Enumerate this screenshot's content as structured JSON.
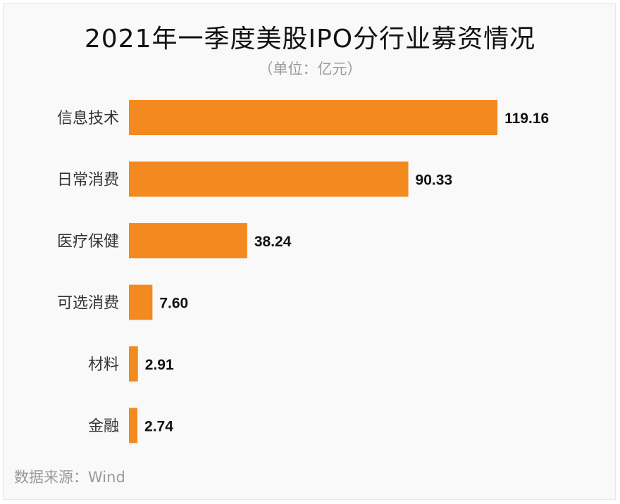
{
  "chart_data": {
    "type": "bar",
    "orientation": "horizontal",
    "title": "2021年一季度美股IPO分行业募资情况",
    "subtitle": "（单位：亿元）",
    "categories": [
      "信息技术",
      "日常消费",
      "医疗保健",
      "可选消费",
      "材料",
      "金融"
    ],
    "values": [
      119.16,
      90.33,
      38.24,
      7.6,
      2.91,
      2.74
    ],
    "value_labels": [
      "119.16",
      "90.33",
      "38.24",
      "7.60",
      "2.91",
      "2.74"
    ],
    "bar_color": "#f38a1f",
    "grid": false,
    "legend": "none",
    "source": "数据来源：Wind"
  }
}
